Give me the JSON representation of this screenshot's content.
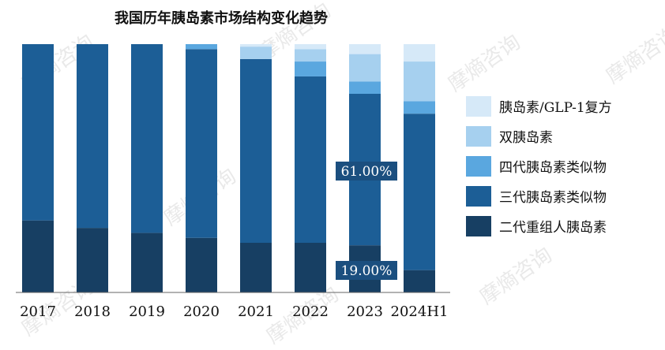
{
  "watermark": "摩熵咨询",
  "chart_data": {
    "type": "bar",
    "stacked": true,
    "percent": true,
    "title": "我国历年胰岛素市场结构变化趋势",
    "xlabel": "",
    "ylabel": "",
    "ylim": [
      0,
      100
    ],
    "grid": false,
    "legend_position": "right",
    "categories": [
      "2017",
      "2018",
      "2019",
      "2020",
      "2021",
      "2022",
      "2023",
      "2024H1"
    ],
    "series": [
      {
        "name": "二代重组人胰岛素",
        "color": "#173f63",
        "values": [
          29,
          26,
          24,
          22,
          20,
          20,
          19,
          9
        ]
      },
      {
        "name": "三代胰岛素类似物",
        "color": "#1c5e96",
        "values": [
          71,
          74,
          76,
          76,
          74,
          67,
          61,
          63
        ]
      },
      {
        "name": "四代胰岛素类似物",
        "color": "#5aa7df",
        "values": [
          0,
          0,
          0,
          2,
          0,
          6,
          5,
          5
        ]
      },
      {
        "name": "双胰岛素",
        "color": "#a6d0ef",
        "values": [
          0,
          0,
          0,
          0,
          5,
          5,
          11,
          16
        ]
      },
      {
        "name": "胰岛素/GLP-1复方",
        "color": "#d6e9f8",
        "values": [
          0,
          0,
          0,
          0,
          1,
          2,
          4,
          7
        ]
      }
    ],
    "data_labels": [
      {
        "category": "2023",
        "series": "三代胰岛素类似物",
        "text": "61.00%"
      },
      {
        "category": "2023",
        "series": "二代重组人胰岛素",
        "text": "19.00%"
      }
    ]
  }
}
